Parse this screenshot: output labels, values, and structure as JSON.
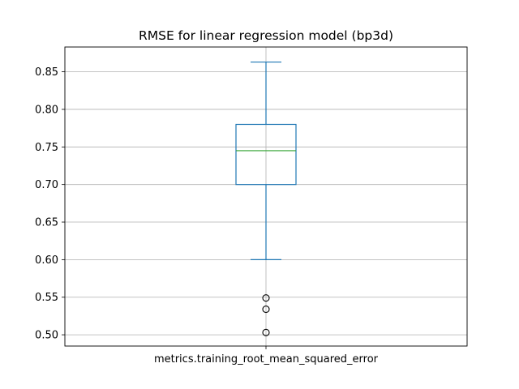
{
  "chart_data": {
    "type": "box",
    "title": "RMSE for linear regression model (bp3d)",
    "categories": [
      "metrics.training_root_mean_squared_error"
    ],
    "xlabel": "",
    "ylabel": "",
    "ylim": [
      0.485,
      0.883
    ],
    "yticks": [
      0.5,
      0.55,
      0.6,
      0.65,
      0.7,
      0.75,
      0.8,
      0.85
    ],
    "ytick_labels": [
      "0.50",
      "0.55",
      "0.60",
      "0.65",
      "0.70",
      "0.75",
      "0.80",
      "0.85"
    ],
    "grid": true,
    "series": [
      {
        "whisker_low": 0.6,
        "q1": 0.7,
        "median": 0.745,
        "q3": 0.78,
        "whisker_high": 0.863,
        "outliers": [
          0.549,
          0.534,
          0.503
        ]
      }
    ],
    "colors": {
      "box": "#1f77b4",
      "median": "#2ca02c",
      "grid": "#b0b0b0",
      "outlier_edge": "#000000"
    }
  }
}
